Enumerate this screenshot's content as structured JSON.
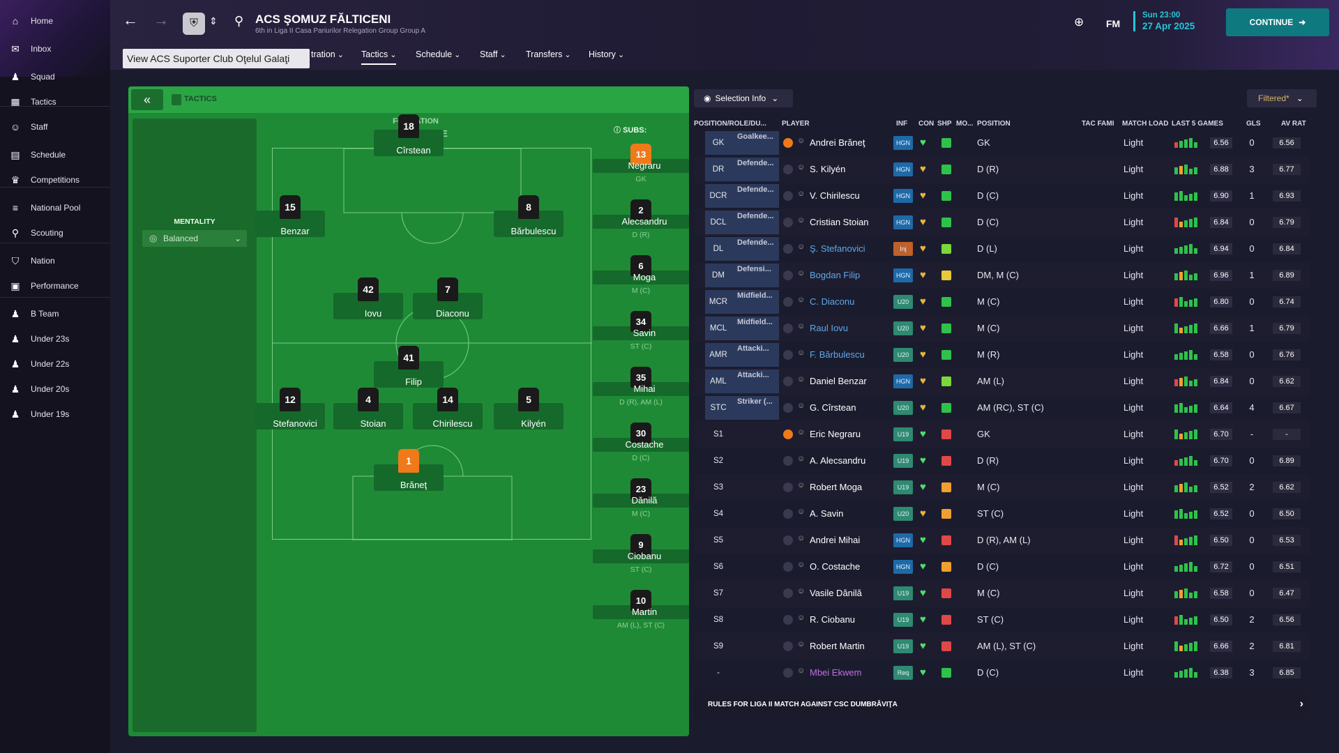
{
  "sidebar": {
    "items": [
      {
        "label": "Home",
        "icon": "home-icon",
        "glyph": "⌂"
      },
      {
        "label": "Inbox",
        "icon": "inbox-icon",
        "glyph": "✉"
      },
      {
        "label": "Squad",
        "icon": "squad-icon",
        "glyph": "♟"
      },
      {
        "label": "Tactics",
        "icon": "tactics-icon",
        "glyph": "▦"
      },
      {
        "label": "Staff",
        "icon": "staff-icon",
        "glyph": "☺"
      },
      {
        "label": "Schedule",
        "icon": "schedule-icon",
        "glyph": "▤"
      },
      {
        "label": "Competitions",
        "icon": "trophy-icon",
        "glyph": "♛"
      },
      {
        "label": "National Pool",
        "icon": "list-icon",
        "glyph": "≡"
      },
      {
        "label": "Scouting",
        "icon": "search-icon",
        "glyph": "⚲"
      },
      {
        "label": "Nation",
        "icon": "shield-icon",
        "glyph": "⛉"
      },
      {
        "label": "Performance",
        "icon": "performance-icon",
        "glyph": "▣"
      },
      {
        "label": "B Team",
        "icon": "team-icon",
        "glyph": "♟"
      },
      {
        "label": "Under 23s",
        "icon": "team-icon",
        "glyph": "♟"
      },
      {
        "label": "Under 22s",
        "icon": "team-icon",
        "glyph": "♟"
      },
      {
        "label": "Under 20s",
        "icon": "team-icon",
        "glyph": "♟"
      },
      {
        "label": "Under 19s",
        "icon": "team-icon",
        "glyph": "♟"
      }
    ]
  },
  "header": {
    "club_name": "ACS ŞOMUZ FĂLTICENI",
    "club_sub": "6th in Liga II Casa Pariurilor Relegation Group Group A",
    "tooltip": "View ACS Suporter Club Oţelul Galaţi",
    "menu": [
      "tration",
      "Tactics",
      "Schedule",
      "Staff",
      "Transfers",
      "History"
    ],
    "fm_label": "FM",
    "time": "Sun 23:00",
    "date": "27 Apr 2025",
    "continue_label": "CONTINUE"
  },
  "tactics": {
    "title": "TACTICS",
    "mentality_label": "MENTALITY",
    "mentality_value": "Balanced",
    "formation_label": "FORMATION",
    "formation_value": "4-3-3 DM WIDE",
    "subs_label": "SUBS:",
    "players": [
      {
        "num": "18",
        "name": "Cîrstean",
        "gk": false
      },
      {
        "num": "15",
        "name": "Benzar",
        "gk": false
      },
      {
        "num": "8",
        "name": "Bărbulescu",
        "gk": false
      },
      {
        "num": "42",
        "name": "Iovu",
        "gk": false
      },
      {
        "num": "7",
        "name": "Diaconu",
        "gk": false
      },
      {
        "num": "41",
        "name": "Filip",
        "gk": false
      },
      {
        "num": "12",
        "name": "Stefanovici",
        "gk": false
      },
      {
        "num": "4",
        "name": "Stoian",
        "gk": false
      },
      {
        "num": "14",
        "name": "Chirilescu",
        "gk": false
      },
      {
        "num": "5",
        "name": "Kilyén",
        "gk": false
      },
      {
        "num": "1",
        "name": "Brăneţ",
        "gk": true
      }
    ],
    "subs": [
      {
        "num": "13",
        "name": "Negraru",
        "pos": "GK",
        "gk": true
      },
      {
        "num": "2",
        "name": "Alecsandru",
        "pos": "D (R)",
        "gk": false
      },
      {
        "num": "6",
        "name": "Moga",
        "pos": "M (C)",
        "gk": false
      },
      {
        "num": "34",
        "name": "Savin",
        "pos": "ST (C)",
        "gk": false
      },
      {
        "num": "35",
        "name": "Mihai",
        "pos": "D (R), AM (L)",
        "gk": false
      },
      {
        "num": "30",
        "name": "Costache",
        "pos": "D (C)",
        "gk": false
      },
      {
        "num": "23",
        "name": "Dănilă",
        "pos": "M (C)",
        "gk": false
      },
      {
        "num": "9",
        "name": "Ciobanu",
        "pos": "ST (C)",
        "gk": false
      },
      {
        "num": "10",
        "name": "Martin",
        "pos": "AM (L), ST (C)",
        "gk": false
      }
    ]
  },
  "selection": {
    "info_label": "Selection Info",
    "filter_label": "Filtered*",
    "columns": [
      "POSITION/ROLE/DU...",
      "PLAYER",
      "INF",
      "CON",
      "SHP",
      "MO...",
      "POSITION",
      "TAC FAMI",
      "MATCH LOAD",
      "LAST 5 GAMES",
      "GLS",
      "AV RAT"
    ],
    "rows": [
      {
        "pos": "GK",
        "role": "Goalkee...",
        "name": "Andrei Brăneţ",
        "inf": "HGN",
        "con": "green",
        "shp": "green",
        "position": "GK",
        "load": "Light",
        "avg": "6.56",
        "gls": "0",
        "avrat": "6.56",
        "style": "normal"
      },
      {
        "pos": "DR",
        "role": "Defende...",
        "name": "S. Kilyén",
        "inf": "HGN",
        "con": "gold",
        "shp": "green",
        "position": "D (R)",
        "load": "Light",
        "avg": "6.88",
        "gls": "3",
        "avrat": "6.77",
        "style": "normal"
      },
      {
        "pos": "DCR",
        "role": "Defende...",
        "name": "V. Chirilescu",
        "inf": "HGN",
        "con": "gold",
        "shp": "green",
        "position": "D (C)",
        "load": "Light",
        "avg": "6.90",
        "gls": "1",
        "avrat": "6.93",
        "style": "normal"
      },
      {
        "pos": "DCL",
        "role": "Defende...",
        "name": "Cristian Stoian",
        "inf": "HGN",
        "con": "gold",
        "shp": "green",
        "position": "D (C)",
        "load": "Light",
        "avg": "6.84",
        "gls": "0",
        "avrat": "6.79",
        "style": "normal"
      },
      {
        "pos": "DL",
        "role": "Defende...",
        "name": "Ş. Stefanovici",
        "inf": "Inj",
        "con": "gold",
        "shp": "lime",
        "position": "D (L)",
        "load": "Light",
        "avg": "6.94",
        "gls": "0",
        "avrat": "6.84",
        "style": "link"
      },
      {
        "pos": "DM",
        "role": "Defensi...",
        "name": "Bogdan Filip",
        "inf": "HGN",
        "con": "gold",
        "shp": "yellow",
        "position": "DM, M (C)",
        "load": "Light",
        "avg": "6.96",
        "gls": "1",
        "avrat": "6.89",
        "style": "link"
      },
      {
        "pos": "MCR",
        "role": "Midfield...",
        "name": "C. Diaconu",
        "inf": "U20",
        "con": "gold",
        "shp": "green",
        "position": "M (C)",
        "load": "Light",
        "avg": "6.80",
        "gls": "0",
        "avrat": "6.74",
        "style": "link"
      },
      {
        "pos": "MCL",
        "role": "Midfield...",
        "name": "Raul Iovu",
        "inf": "U20",
        "con": "gold",
        "shp": "green",
        "position": "M (C)",
        "load": "Light",
        "avg": "6.66",
        "gls": "1",
        "avrat": "6.79",
        "style": "link"
      },
      {
        "pos": "AMR",
        "role": "Attacki...",
        "name": "F. Bărbulescu",
        "inf": "U20",
        "con": "gold",
        "shp": "green",
        "position": "M (R)",
        "load": "Light",
        "avg": "6.58",
        "gls": "0",
        "avrat": "6.76",
        "style": "link"
      },
      {
        "pos": "AML",
        "role": "Attacki...",
        "name": "Daniel Benzar",
        "inf": "HGN",
        "con": "gold",
        "shp": "lime",
        "position": "AM (L)",
        "load": "Light",
        "avg": "6.84",
        "gls": "0",
        "avrat": "6.62",
        "style": "normal"
      },
      {
        "pos": "STC",
        "role": "Striker (...",
        "name": "G. Cîrstean",
        "inf": "U20",
        "con": "gold",
        "shp": "green",
        "position": "AM (RC), ST (C)",
        "load": "Light",
        "avg": "6.64",
        "gls": "4",
        "avrat": "6.67",
        "style": "normal"
      },
      {
        "pos": "S1",
        "role": "",
        "name": "Eric Negraru",
        "inf": "U19",
        "con": "green",
        "shp": "red",
        "position": "GK",
        "load": "Light",
        "avg": "6.70",
        "gls": "-",
        "avrat": "-",
        "style": "normal"
      },
      {
        "pos": "S2",
        "role": "",
        "name": "A. Alecsandru",
        "inf": "U19",
        "con": "green",
        "shp": "red",
        "position": "D (R)",
        "load": "Light",
        "avg": "6.70",
        "gls": "0",
        "avrat": "6.89",
        "style": "normal"
      },
      {
        "pos": "S3",
        "role": "",
        "name": "Robert Moga",
        "inf": "U19",
        "con": "green",
        "shp": "orange",
        "position": "M (C)",
        "load": "Light",
        "avg": "6.52",
        "gls": "2",
        "avrat": "6.62",
        "style": "normal"
      },
      {
        "pos": "S4",
        "role": "",
        "name": "A. Savin",
        "inf": "U20",
        "con": "gold",
        "shp": "orange",
        "position": "ST (C)",
        "load": "Light",
        "avg": "6.52",
        "gls": "0",
        "avrat": "6.50",
        "style": "normal"
      },
      {
        "pos": "S5",
        "role": "",
        "name": "Andrei Mihai",
        "inf": "HGN",
        "con": "green",
        "shp": "red",
        "position": "D (R), AM (L)",
        "load": "Light",
        "avg": "6.50",
        "gls": "0",
        "avrat": "6.53",
        "style": "normal"
      },
      {
        "pos": "S6",
        "role": "",
        "name": "O. Costache",
        "inf": "HGN",
        "con": "green",
        "shp": "orange",
        "position": "D (C)",
        "load": "Light",
        "avg": "6.72",
        "gls": "0",
        "avrat": "6.51",
        "style": "normal"
      },
      {
        "pos": "S7",
        "role": "",
        "name": "Vasile Dănilă",
        "inf": "U19",
        "con": "green",
        "shp": "red",
        "position": "M (C)",
        "load": "Light",
        "avg": "6.58",
        "gls": "0",
        "avrat": "6.47",
        "style": "normal"
      },
      {
        "pos": "S8",
        "role": "",
        "name": "R. Ciobanu",
        "inf": "U19",
        "con": "green",
        "shp": "red",
        "position": "ST (C)",
        "load": "Light",
        "avg": "6.50",
        "gls": "2",
        "avrat": "6.56",
        "style": "normal"
      },
      {
        "pos": "S9",
        "role": "",
        "name": "Robert Martin",
        "inf": "U19",
        "con": "green",
        "shp": "red",
        "position": "AM (L), ST (C)",
        "load": "Light",
        "avg": "6.66",
        "gls": "2",
        "avrat": "6.81",
        "style": "normal"
      },
      {
        "pos": "-",
        "role": "",
        "name": "Mbei Ekwem",
        "inf": "Req",
        "con": "green",
        "shp": "green",
        "position": "D (C)",
        "load": "Light",
        "avg": "6.38",
        "gls": "3",
        "avrat": "6.85",
        "style": "purple"
      }
    ],
    "footer": "RULES FOR LIGA II MATCH AGAINST CSC DUMBRĂVIŢA"
  },
  "colors": {
    "accent": "#0e7a80",
    "pitch": "#1f8a36",
    "cyan": "#26c6da"
  }
}
